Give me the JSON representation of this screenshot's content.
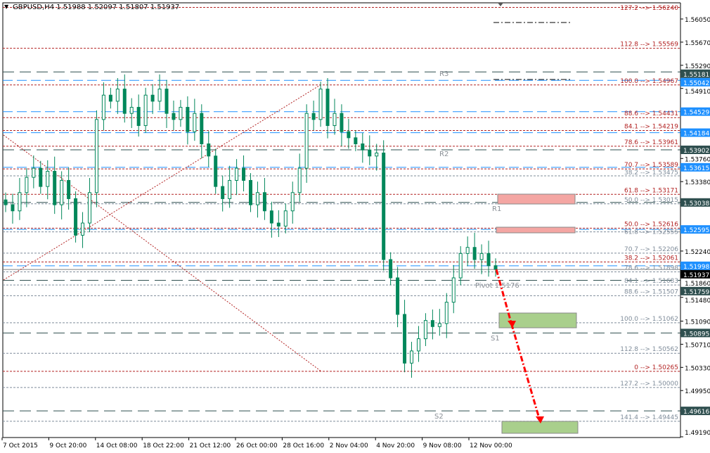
{
  "chart_data": {
    "type": "candlestick",
    "title": "GBPUSD,H4  1.51988 1.52097 1.51807 1.51937",
    "symbol": "GBPUSD",
    "timeframe": "H4",
    "ohlc_last": {
      "open": 1.51988,
      "high": 1.52097,
      "low": 1.51807,
      "close": 1.51937
    },
    "ylim": [
      1.4919,
      1.563
    ],
    "y_ticks": [
      "1.56050",
      "1.55670",
      "1.55290",
      "1.54910",
      "1.53760",
      "1.53380",
      "1.52240",
      "1.51860",
      "1.51480",
      "1.51090",
      "1.50710",
      "1.50330",
      "1.49950",
      "1.49190"
    ],
    "x_ticks": [
      "7 Oct 2015",
      "9 Oct 20:00",
      "14 Oct 08:00",
      "18 Oct 22:00",
      "21 Oct 12:00",
      "26 Oct 00:00",
      "28 Oct 16:00",
      "2 Nov 04:00",
      "4 Nov 20:00",
      "9 Nov 08:00",
      "12 Nov 00:00"
    ],
    "closes": [
      1.53,
      1.529,
      1.532,
      1.5345,
      1.536,
      1.533,
      1.5355,
      1.53,
      1.534,
      1.531,
      1.525,
      1.527,
      1.532,
      1.544,
      1.548,
      1.547,
      1.549,
      1.545,
      1.546,
      1.543,
      1.548,
      1.547,
      1.549,
      1.545,
      1.544,
      1.546,
      1.542,
      1.545,
      1.54,
      1.538,
      1.533,
      1.531,
      1.534,
      1.536,
      1.534,
      1.53,
      1.532,
      1.529,
      1.527,
      1.5265,
      1.529,
      1.532,
      1.536,
      1.545,
      1.544,
      1.549,
      1.543,
      1.545,
      1.542,
      1.541,
      1.54,
      1.539,
      1.538,
      1.5385,
      1.521,
      1.518,
      1.512,
      1.504,
      1.506,
      1.508,
      1.511,
      1.51,
      1.5105,
      1.514,
      1.518,
      1.522,
      1.523,
      1.521,
      1.522,
      1.52,
      1.5194
    ],
    "fib_set_1": [
      {
        "level": "127.2",
        "price": "1.56240"
      },
      {
        "level": "112.8",
        "price": "1.55569"
      },
      {
        "level": "100.0",
        "price": "1.54967"
      },
      {
        "level": "88.6",
        "price": "1.54431"
      },
      {
        "level": "84.1",
        "price": "1.54219"
      },
      {
        "level": "78.6",
        "price": "1.53961"
      },
      {
        "level": "70.7",
        "price": "1.53589"
      },
      {
        "level": "61.8",
        "price": "1.53171"
      },
      {
        "level": "50.0",
        "price": "1.52616"
      },
      {
        "level": "38.2",
        "price": "1.52061"
      },
      {
        "level": "0",
        "price": "1.50265"
      }
    ],
    "fib_set_2": [
      {
        "level": "38.2",
        "price": "1.53475"
      },
      {
        "level": "50.0",
        "price": "1.53015"
      },
      {
        "level": "61.8",
        "price": "1.52555"
      },
      {
        "level": "70.7",
        "price": "1.52206"
      },
      {
        "level": "78.6",
        "price": "1.51898"
      },
      {
        "level": "84.1",
        "price": "1.51683"
      },
      {
        "level": "88.6",
        "price": "1.51507"
      },
      {
        "level": "100.0",
        "price": "1.51062"
      },
      {
        "level": "112.8",
        "price": "1.50562"
      },
      {
        "level": "127.2",
        "price": "1.50000"
      },
      {
        "level": "141.4",
        "price": "1.49445"
      }
    ],
    "pivots": [
      {
        "name": "R3",
        "price": "1.55181"
      },
      {
        "name": "R2",
        "price": "1.53902"
      },
      {
        "name": "R1",
        "price": "1.53038"
      },
      {
        "name": "Pivot 1.5176",
        "price": "1.51759"
      },
      {
        "name": "S1",
        "price": "1.50895"
      },
      {
        "name": "S2",
        "price": "1.49616"
      }
    ],
    "blue_levels": [
      "1.55042",
      "1.54529",
      "1.54184",
      "1.53615",
      "1.52595",
      "1.51998"
    ],
    "current_price": "1.51937",
    "arrow_separator": "-->",
    "colors": {
      "bull": "#00875a",
      "fib1": "#b22222",
      "fib2": "#7f8c9a",
      "pivot": "#2f4f4f",
      "blue": "#1e90ff",
      "supply": "#f4a6a3",
      "demand": "#a9cf8c",
      "arrow": "#ff0000"
    }
  }
}
